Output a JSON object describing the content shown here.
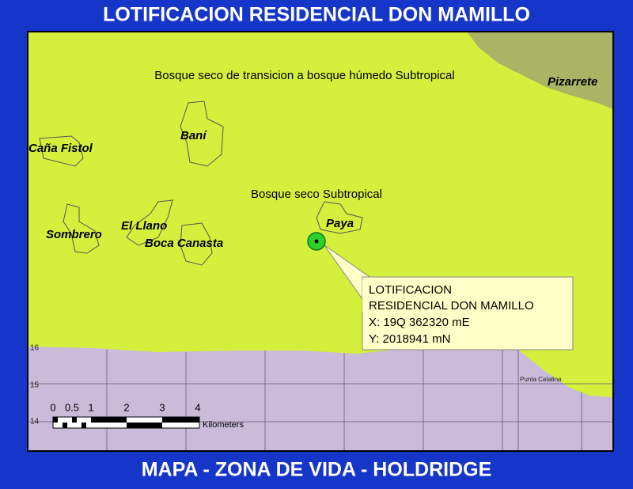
{
  "header": {
    "title": "LOTIFICACION RESIDENCIAL DON MAMILLO"
  },
  "map": {
    "zones": [
      "Bosque seco de transicion a bosque húmedo Subtropical",
      "Bosque seco Subtropical"
    ],
    "places": [
      "Pizarrete",
      "Baní",
      "Caña Fistol",
      "Sombrero",
      "El Llano",
      "Boca Canasta",
      "Paya"
    ],
    "marker": {
      "lines": [
        "LOTIFICACION",
        "RESIDENCIAL DON MAMILLO",
        "X: 19Q 362320 mE",
        "Y: 2018941 mN"
      ]
    },
    "scale": {
      "ticks": [
        "0",
        "0.5",
        "1",
        "2",
        "3",
        "4"
      ],
      "unit": "Kilometers"
    },
    "grid_labels": [
      "16",
      "15",
      "14"
    ],
    "coast_labels": [
      "Punta Catalina"
    ]
  },
  "footer": {
    "title": "MAPA - ZONA DE VIDA - HOLDRIDGE"
  }
}
